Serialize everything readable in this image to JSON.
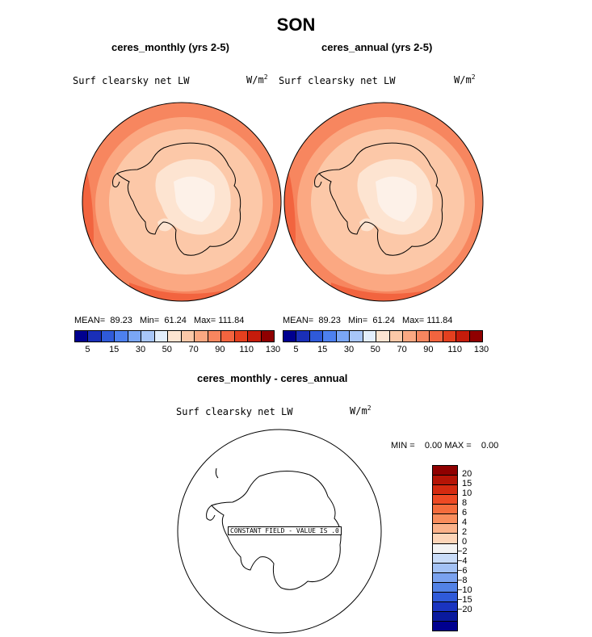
{
  "title": "SON",
  "panels": [
    {
      "name": "ceres-monthly",
      "subtitle": "ceres_monthly (yrs 2-5)",
      "field_label": "Surf clearsky net LW",
      "units_base": "W/m",
      "units_exp": "2",
      "stats": {
        "mean_label": "MEAN=",
        "mean": "89.23",
        "min_label": "Min=",
        "min": "61.24",
        "max_label": "Max=",
        "max": "111.84"
      }
    },
    {
      "name": "ceres-annual",
      "subtitle": "ceres_annual (yrs 2-5)",
      "field_label": "Surf clearsky net LW",
      "units_base": "W/m",
      "units_exp": "2",
      "stats": {
        "mean_label": "MEAN=",
        "mean": "89.23",
        "min_label": "Min=",
        "min": "61.24",
        "max_label": "Max=",
        "max": "111.84"
      }
    }
  ],
  "colorbar_abs": {
    "colors": [
      "#00008f",
      "#1a2fb8",
      "#2f5ad9",
      "#4d80ef",
      "#7aa6f5",
      "#a8c6f8",
      "#e3eefc",
      "#fde4d1",
      "#fcc8a8",
      "#fba882",
      "#f7865f",
      "#f2643f",
      "#e4401f",
      "#c51c0b",
      "#8f0000"
    ],
    "labels": [
      "5",
      "15",
      "30",
      "50",
      "70",
      "90",
      "110",
      "130"
    ]
  },
  "diff_panel": {
    "subtitle": "ceres_monthly - ceres_annual",
    "field_label": "Surf clearsky net LW",
    "units_base": "W/m",
    "units_exp": "2",
    "stats_text": "MIN =    0.00 MAX =    0.00",
    "constant_text": "CONSTANT FIELD - VALUE IS .0"
  },
  "colorbar_diff": {
    "colors": [
      "#8f0000",
      "#b51406",
      "#d42a10",
      "#ee4a24",
      "#f56c3c",
      "#f98d5c",
      "#fbb28a",
      "#fdd5b8",
      "#f3f3f3",
      "#c9dcf8",
      "#a3c2f5",
      "#7aa2ef",
      "#5282e6",
      "#2f5ad9",
      "#1a34c0",
      "#0a1a9e",
      "#00008f"
    ],
    "labels": [
      "20",
      "15",
      "10",
      "8",
      "6",
      "4",
      "2",
      "0",
      "−2",
      "−4",
      "−6",
      "−8",
      "−10",
      "−15",
      "−20"
    ]
  }
}
